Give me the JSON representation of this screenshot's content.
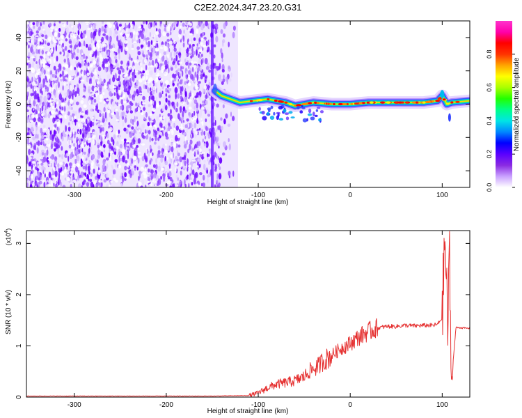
{
  "title": "C2E2.2024.347.23.20.G31",
  "chart_data": [
    {
      "type": "heatmap",
      "xlabel": "Height of straight line (km)",
      "ylabel": "Frequency (Hz)",
      "xlim": [
        -352,
        130
      ],
      "ylim": [
        -50,
        50
      ],
      "xticks": [
        -300,
        -200,
        -100,
        0,
        100
      ],
      "yticks": [
        -40,
        -20,
        0,
        20,
        40
      ],
      "grid": false,
      "colorbar": {
        "label": "Normalized spectral amplitude",
        "range": [
          0.0,
          1.0
        ],
        "ticks": [
          "0.0",
          "0.2",
          "0.4",
          "0.6",
          "0.8"
        ],
        "colors": [
          "#ffffff",
          "#c9a0ff",
          "#8a2be2",
          "#5a00ff",
          "#0000ff",
          "#0088ff",
          "#00e5e5",
          "#00ff88",
          "#22ff00",
          "#aaff00",
          "#ffff00",
          "#ffa500",
          "#ff3300",
          "#ff0000",
          "#ff00aa",
          "#ff33cc"
        ]
      },
      "noise_region": {
        "x_start": -352,
        "x_end": -122,
        "freq_range": [
          -50,
          50
        ]
      },
      "signal_ridge": [
        {
          "x": -147,
          "freq": 8
        },
        {
          "x": -140,
          "freq": 5
        },
        {
          "x": -130,
          "freq": 3
        },
        {
          "x": -120,
          "freq": 1
        },
        {
          "x": -105,
          "freq": 2
        },
        {
          "x": -90,
          "freq": 3
        },
        {
          "x": -80,
          "freq": 2
        },
        {
          "x": -70,
          "freq": 1
        },
        {
          "x": -60,
          "freq": -1
        },
        {
          "x": -50,
          "freq": 0
        },
        {
          "x": -40,
          "freq": 1
        },
        {
          "x": -20,
          "freq": 0
        },
        {
          "x": 0,
          "freq": 0
        },
        {
          "x": 20,
          "freq": 1
        },
        {
          "x": 40,
          "freq": 1
        },
        {
          "x": 60,
          "freq": 1
        },
        {
          "x": 80,
          "freq": 1
        },
        {
          "x": 95,
          "freq": 2
        },
        {
          "x": 100,
          "freq": 5
        },
        {
          "x": 105,
          "freq": 0
        },
        {
          "x": 110,
          "freq": 1
        },
        {
          "x": 130,
          "freq": 2
        }
      ]
    },
    {
      "type": "line",
      "xlabel": "Height of straight line (km)",
      "ylabel": "SNR (10 * v/v)",
      "yunit_label": "(x10",
      "yunit_exp": "4",
      "xlim": [
        -352,
        130
      ],
      "ylim": [
        0,
        3.25
      ],
      "xticks": [
        -300,
        -200,
        -100,
        0,
        100
      ],
      "yticks": [
        0,
        1,
        2,
        3
      ],
      "line_color": "#e53030",
      "series": [
        {
          "x": [
            -352,
            -300,
            -250,
            -200,
            -150,
            -110,
            -100,
            -90,
            -80,
            -70,
            -60,
            -50,
            -45,
            -40,
            -35,
            -30,
            -25,
            -20,
            -10,
            0,
            10,
            20,
            30,
            40,
            50,
            60,
            70,
            80,
            90,
            95,
            100,
            103,
            106,
            108,
            110,
            115,
            130
          ],
          "y": [
            0.02,
            0.02,
            0.02,
            0.02,
            0.02,
            0.03,
            0.08,
            0.18,
            0.25,
            0.28,
            0.32,
            0.4,
            0.5,
            0.55,
            0.6,
            0.7,
            0.75,
            0.82,
            0.95,
            1.05,
            1.18,
            1.28,
            1.35,
            1.38,
            1.38,
            1.4,
            1.39,
            1.4,
            1.4,
            1.42,
            1.55,
            3.2,
            1.3,
            2.6,
            0.3,
            1.36,
            1.34
          ]
        }
      ]
    }
  ]
}
